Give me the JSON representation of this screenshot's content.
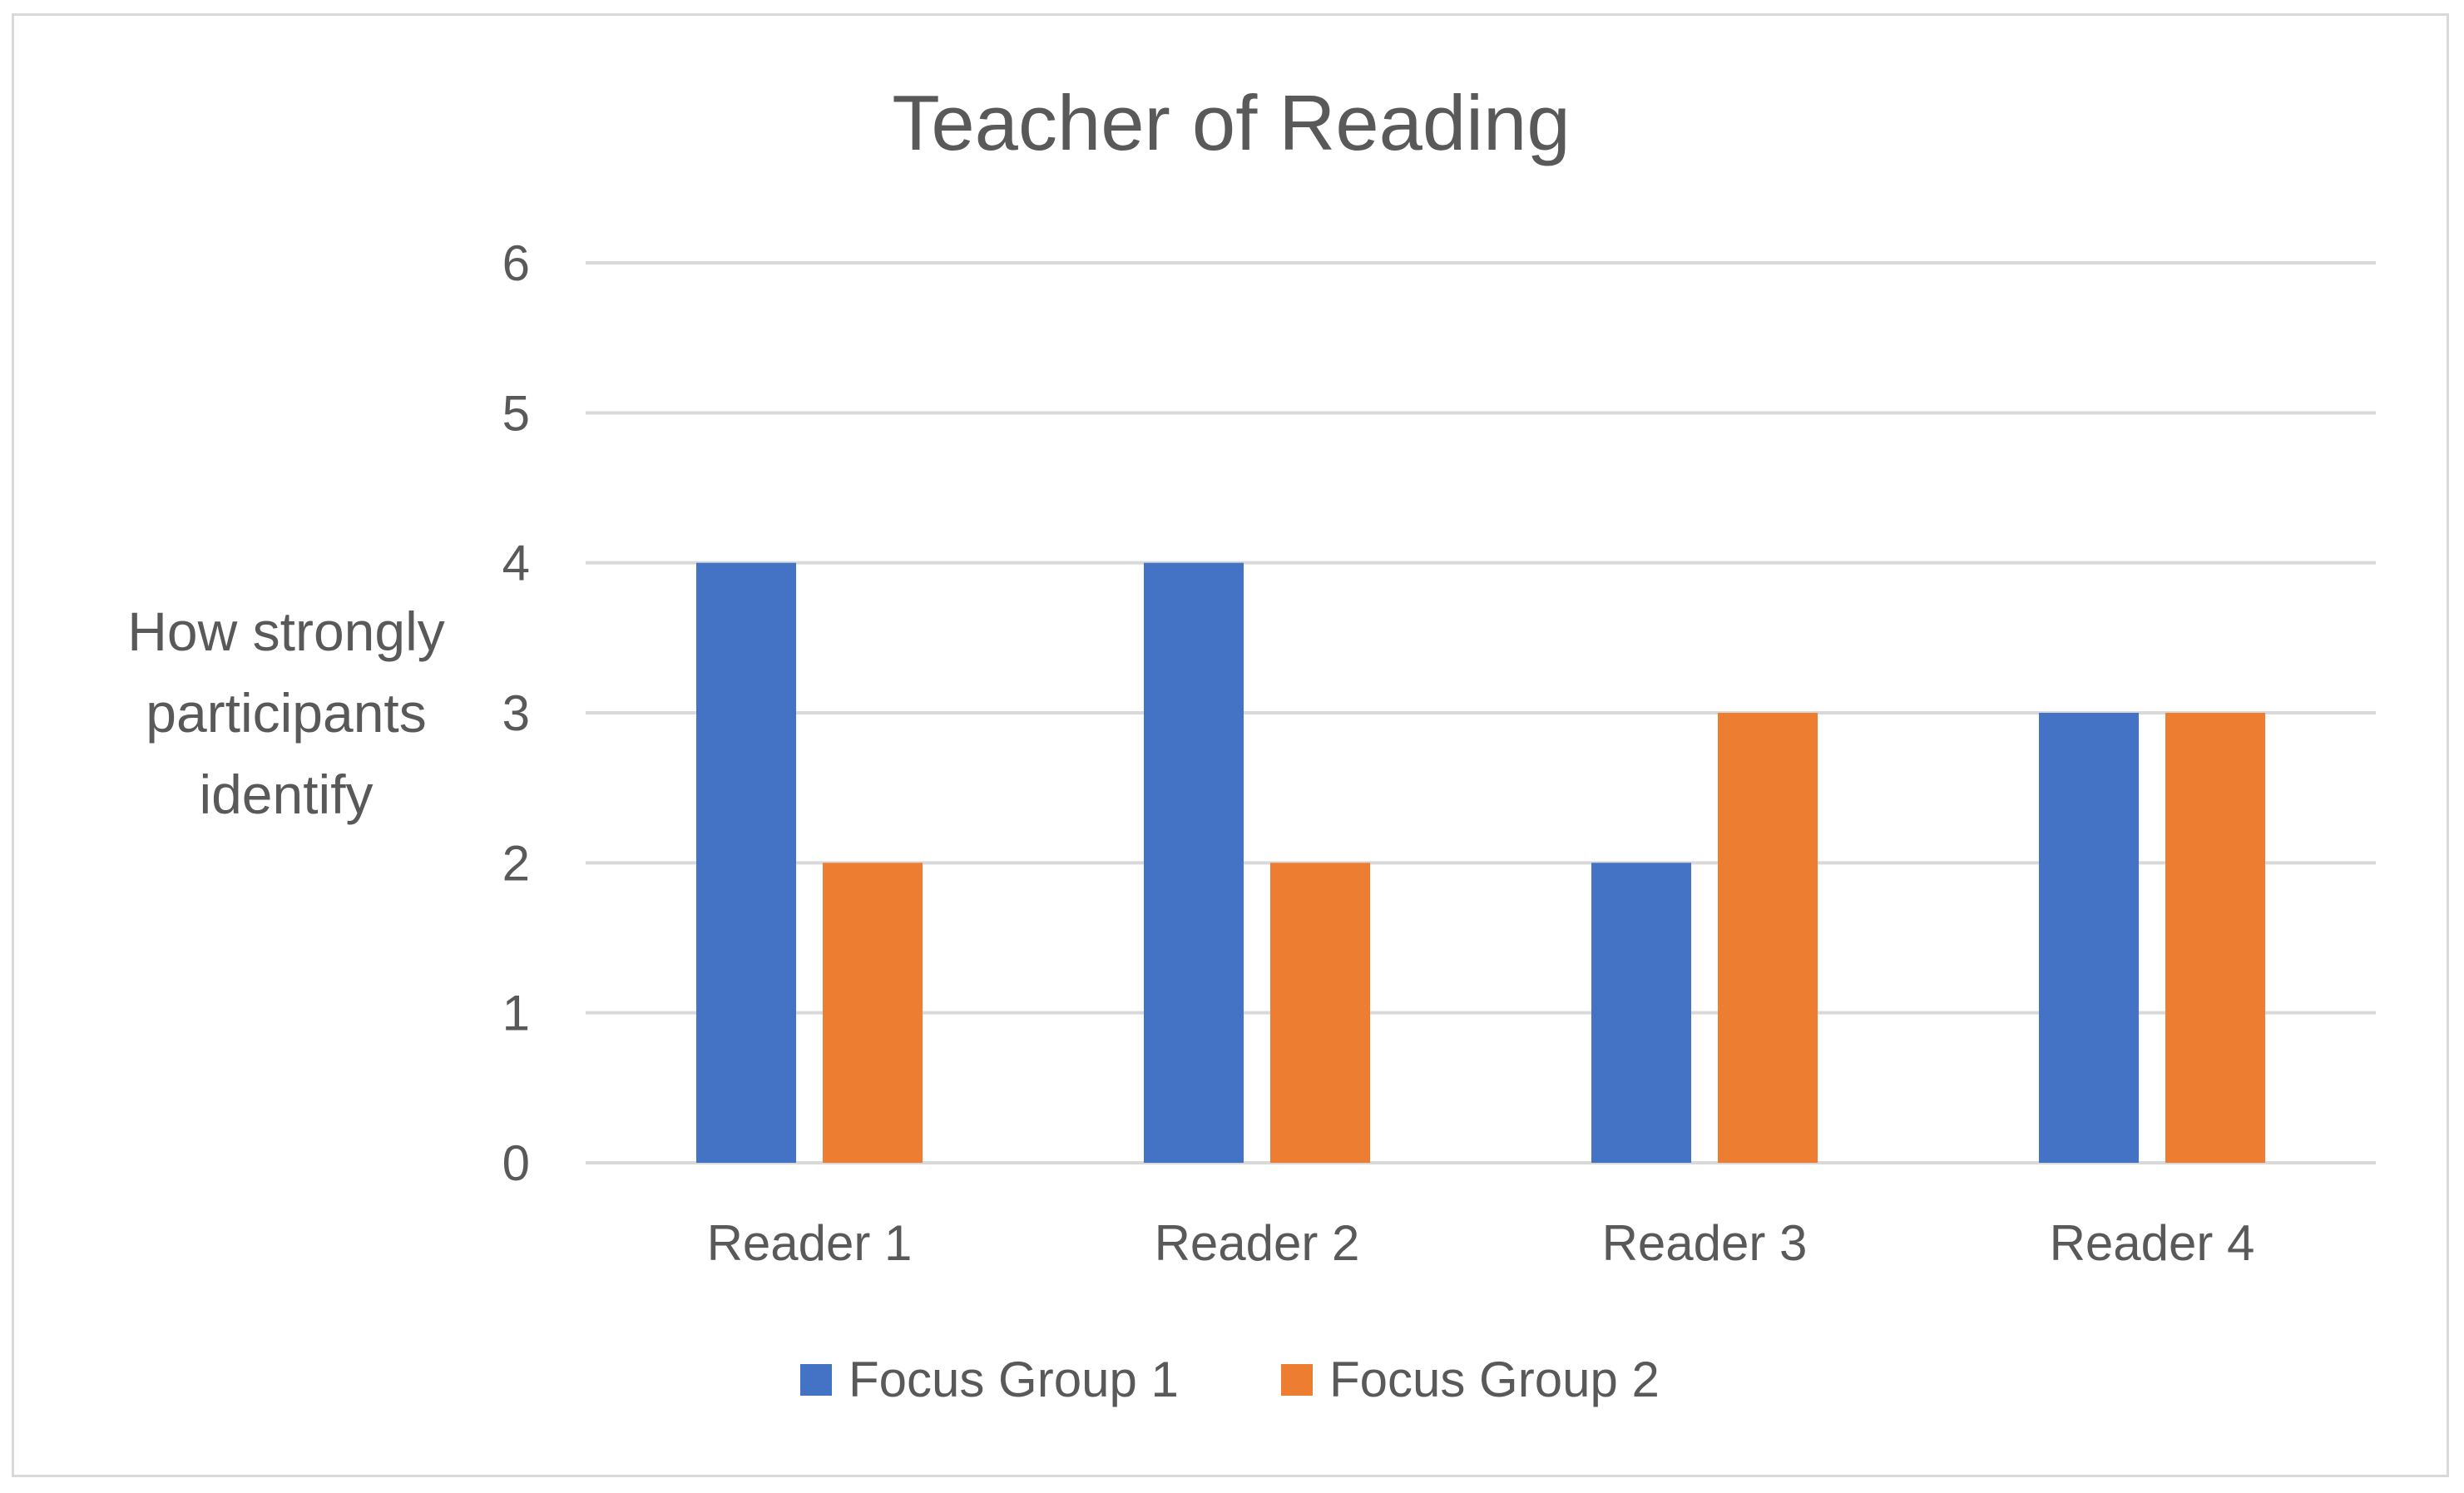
{
  "chart_data": {
    "type": "bar",
    "title": "Teacher of Reading",
    "xlabel": "",
    "ylabel": [
      "How strongly",
      "participants",
      "identify"
    ],
    "categories": [
      "Reader 1",
      "Reader 2",
      "Reader 3",
      "Reader 4"
    ],
    "series": [
      {
        "name": "Focus Group 1",
        "color": "#4472C4",
        "values": [
          4,
          4,
          2,
          3
        ]
      },
      {
        "name": "Focus Group 2",
        "color": "#ED7D31",
        "values": [
          2,
          2,
          3,
          3
        ]
      }
    ],
    "ylim": [
      0,
      6
    ],
    "yticks": [
      0,
      1,
      2,
      3,
      4,
      5,
      6
    ],
    "grid": true,
    "legend_position": "bottom"
  }
}
